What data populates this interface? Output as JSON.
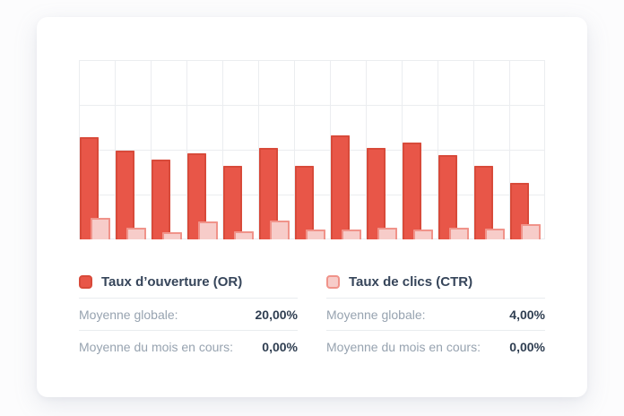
{
  "chart_data": {
    "type": "bar",
    "title": "",
    "x_axis_labels_visible": false,
    "y_axis_labels_visible": false,
    "grid": true,
    "ylim": [
      0,
      40
    ],
    "gridline_step_pct": 10,
    "num_groups": 13,
    "categories": [
      "",
      "",
      "",
      "",
      "",
      "",
      "",
      "",
      "",
      "",
      "",
      "",
      ""
    ],
    "legend_position": "bottom",
    "series": [
      {
        "name": "Taux d’ouverture (OR)",
        "color": "#e85648",
        "border_color": "#d84a3a",
        "values": [
          22.8,
          19.8,
          17.7,
          19.1,
          16.4,
          20.4,
          16.4,
          23.1,
          20.4,
          21.5,
          18.7,
          16.4,
          12.5
        ]
      },
      {
        "name": "Taux de clics (CTR)",
        "color": "#f7ccc9",
        "border_color": "#f0938a",
        "values": [
          4.7,
          2.6,
          1.6,
          3.9,
          1.7,
          4.1,
          2.1,
          2.1,
          2.5,
          2.1,
          2.5,
          2.4,
          3.4
        ]
      }
    ]
  },
  "panels": {
    "or": {
      "title": "Taux d’ouverture (OR)",
      "swatch_color": "#e85648",
      "swatch_border": "#d84a3a",
      "rows": [
        {
          "label": "Moyenne globale:",
          "value": "20,00%"
        },
        {
          "label": "Moyenne du mois en cours:",
          "value": "0,00%"
        }
      ]
    },
    "ctr": {
      "title": "Taux de clics (CTR)",
      "swatch_color": "#f7ccc9",
      "swatch_border": "#f0938a",
      "rows": [
        {
          "label": "Moyenne globale:",
          "value": "4,00%"
        },
        {
          "label": "Moyenne du mois en cours:",
          "value": "0,00%"
        }
      ]
    }
  },
  "colors": {
    "grid": "#ebedf0",
    "divider": "#e9ecef",
    "card_bg": "#ffffff",
    "page_bg": "#fcfcfd",
    "title_text": "#36455a",
    "label_text": "#97a3b0",
    "value_text": "#2f3e51"
  }
}
